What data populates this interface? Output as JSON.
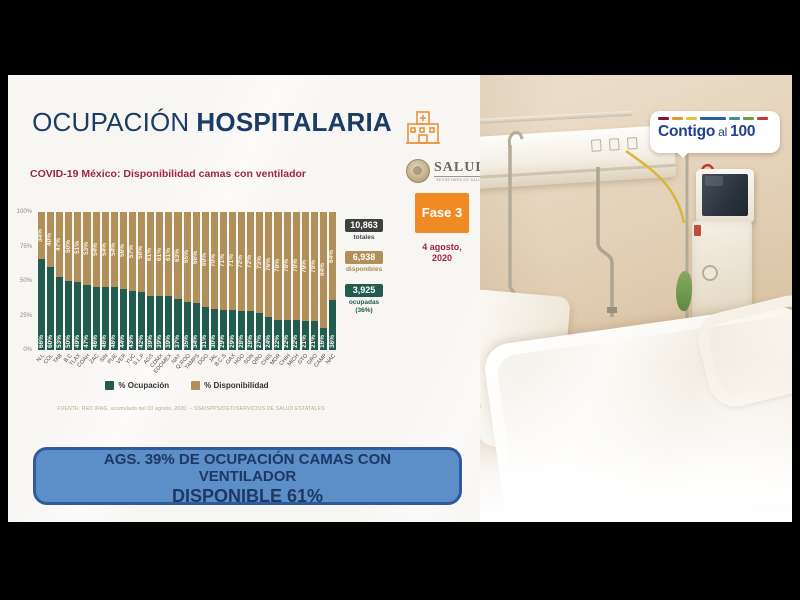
{
  "header": {
    "title_light": "OCUPACIÓN",
    "title_bold": "HOSPITALARIA",
    "subtitle": "COVID-19 México: Disponibilidad camas con ventilador"
  },
  "salud": {
    "wordmark": "SALUD",
    "tagline": "SECRETARÍA DE SALUD"
  },
  "phase": {
    "label": "Fase 3",
    "date_line1": "4 agosto,",
    "date_line2": "2020"
  },
  "stats": {
    "total": {
      "value": "10,863",
      "label": "totales"
    },
    "available": {
      "value": "6,938",
      "label": "disponibles"
    },
    "occupied": {
      "value": "3,925",
      "label1": "ocupadas",
      "label2": "(36%)"
    }
  },
  "legend": {
    "occupied": "% Ocupación",
    "available": "% Disponibilidad"
  },
  "source": "FUENTE: RED IRAG, acumulado del 03 agosto, 2020.  –  SSA/SPPS/DGTI/SERVICIOS DE SALUD ESTATALES",
  "banner": {
    "line1": "AGS. 39% DE OCUPACIÓN CAMAS CON",
    "line2": "VENTILADOR",
    "line3": "DISPONIBLE 61%"
  },
  "contigo": {
    "word1": "Contigo",
    "word2": "al",
    "word3": "100"
  },
  "colors": {
    "occupied_green": "#215c4e",
    "available_tan": "#b18f58",
    "totals_dark": "#3f3f3f",
    "phase_orange": "#f08a24",
    "banner_blue": "#5c8ec8",
    "banner_border": "#2f5b9d",
    "banner_text": "#1e3864",
    "title_navy": "#1b3c64",
    "subtitle_maroon": "#9d2449",
    "contigo_navy": "#21418f",
    "contigo_dashes": [
      "#8a1538",
      "#d99a2b",
      "#e3c23c",
      "#2b5fa3",
      "#37939b",
      "#69a244",
      "#bf3b2f"
    ]
  },
  "chart_data": {
    "type": "bar",
    "stacked": true,
    "title": "COVID-19 México: Disponibilidad camas con ventilador",
    "categories": [
      "N.L",
      "COL",
      "TAB",
      "B.C",
      "TLAX",
      "COAH",
      "ZAC",
      "SIN",
      "PUE",
      "VER",
      "YUC",
      "S.L.P",
      "AGS",
      "CDMX",
      "EDOMEX",
      "NAY",
      "Q.ROO",
      "TAMPS",
      "DGO",
      "JAL",
      "B.C.S",
      "OAX",
      "HGO",
      "SON",
      "QRO",
      "CHIS",
      "MOR",
      "CHIH",
      "MICH",
      "GTO",
      "GRO",
      "CAMP",
      "NAC"
    ],
    "series": [
      {
        "name": "% Ocupación",
        "color": "#215c4e",
        "values": [
          66,
          60,
          53,
          50,
          49,
          47,
          46,
          46,
          46,
          44,
          43,
          42,
          39,
          39,
          39,
          37,
          35,
          34,
          31,
          30,
          29,
          29,
          28,
          28,
          27,
          24,
          22,
          22,
          22,
          21,
          21,
          16,
          36
        ]
      },
      {
        "name": "% Disponibilidad",
        "color": "#b18f58",
        "values": [
          34,
          40,
          47,
          50,
          51,
          53,
          54,
          54,
          54,
          56,
          57,
          58,
          61,
          61,
          61,
          63,
          65,
          66,
          69,
          70,
          71,
          71,
          72,
          72,
          73,
          76,
          78,
          78,
          78,
          79,
          79,
          84,
          64
        ]
      }
    ],
    "y_ticks": [
      "100%",
      "75%",
      "50%",
      "25%",
      "0%"
    ],
    "ylim": [
      0,
      100
    ],
    "grid": false,
    "legend_position": "bottom"
  }
}
